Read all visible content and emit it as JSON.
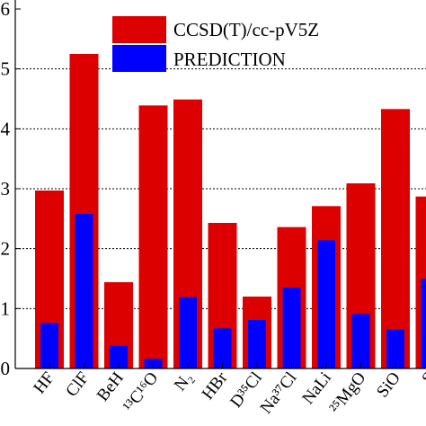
{
  "chart_data": {
    "type": "bar",
    "categories": [
      "HF",
      "ClF",
      "BeH",
      "¹³C¹⁶O",
      "N₂",
      "HBr",
      "D³⁵Cl",
      "Na³⁷Cl",
      "NaLi",
      "²⁵MgO",
      "SiO",
      "S"
    ],
    "series": [
      {
        "name": "CCSD(T)/cc-pV5Z",
        "color": "#dd0000",
        "values": [
          2.97,
          5.25,
          1.44,
          4.39,
          4.49,
          2.43,
          1.2,
          2.36,
          2.71,
          3.09,
          4.33,
          2.87
        ]
      },
      {
        "name": "PREDICTION",
        "color": "#0000ff",
        "values": [
          0.76,
          2.58,
          0.38,
          0.16,
          1.19,
          0.67,
          0.81,
          1.35,
          2.14,
          0.91,
          0.65,
          1.5
        ]
      }
    ],
    "y_ticks": [
      "0",
      "1",
      "2",
      "3",
      "4",
      "5",
      "6"
    ],
    "ylim": [
      0,
      6
    ],
    "grid": "horizontal-dotted",
    "legend": "top-center"
  }
}
